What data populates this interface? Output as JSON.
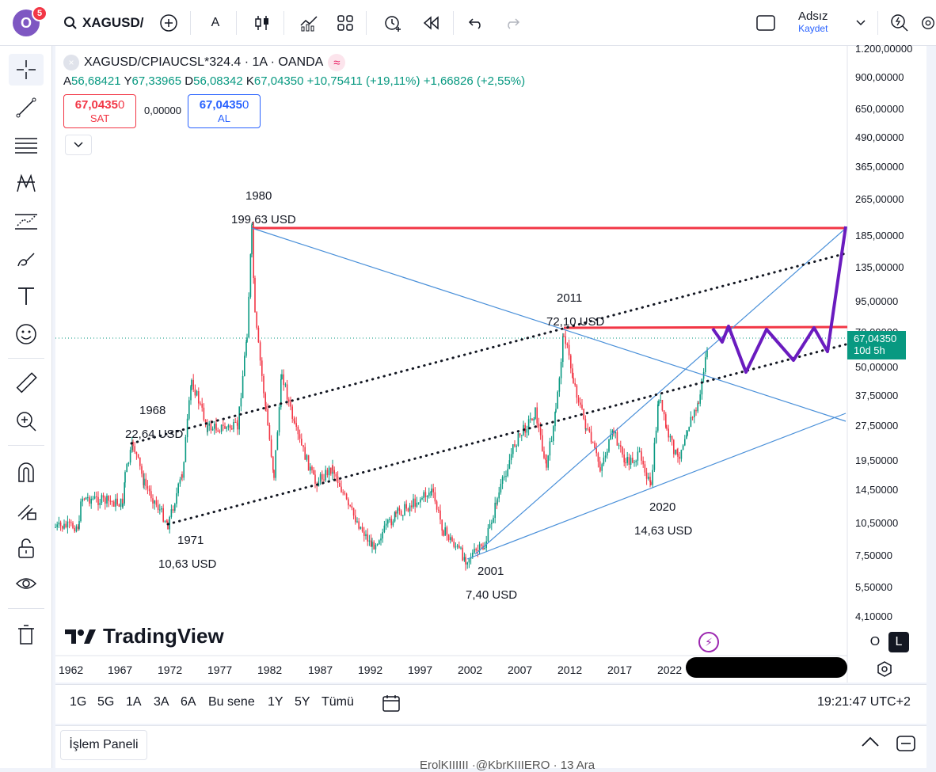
{
  "topbar": {
    "avatar_letter": "O",
    "notif_count": "5",
    "symbol": "XAGUSD/",
    "indicator_label": "A",
    "user_name": "Adsız",
    "save_label": "Kaydet"
  },
  "legend": {
    "title": "XAGUSD/CPIAUCSL*324.4 · 1A · OANDA",
    "ohlc_o_label": "A",
    "ohlc_o": "56,68421",
    "ohlc_h_label": "Y",
    "ohlc_h": "67,33965",
    "ohlc_l_label": "D",
    "ohlc_l": "56,08342",
    "ohlc_c_label": "K",
    "ohlc_c": "67,04350",
    "change": "+10,75411 (+19,11%)",
    "change2": "+1,66826 (+2,55%)"
  },
  "trade": {
    "sell_price": "67,0435",
    "sell_price_sup": "0",
    "sell_label": "SAT",
    "spread": "0,00000",
    "buy_price": "67,0435",
    "buy_price_sup": "0",
    "buy_label": "AL"
  },
  "price_axis": [
    "1.200,00000",
    "900,00000",
    "650,00000",
    "490,00000",
    "365,00000",
    "265,00000",
    "185,00000",
    "135,00000",
    "95,00000",
    "70,00000",
    "50,00000",
    "37,50000",
    "27,50000",
    "19,50000",
    "14,50000",
    "10,50000",
    "7,50000",
    "5,50000",
    "4,10000"
  ],
  "current_price": {
    "price": "67,04350",
    "countdown": "10d 5h"
  },
  "time_axis": [
    "1962",
    "1967",
    "1972",
    "1977",
    "1982",
    "1987",
    "1992",
    "1997",
    "2002",
    "2007",
    "2012",
    "2017",
    "2022"
  ],
  "annotations": [
    {
      "year": "1968",
      "price": "22,64 USD"
    },
    {
      "year": "1971",
      "price": "10,63 USD"
    },
    {
      "year": "1980",
      "price": "199,63 USD"
    },
    {
      "year": "2001",
      "price": "7,40 USD"
    },
    {
      "year": "2011",
      "price": "72,10 USD"
    },
    {
      "year": "2020",
      "price": "14,63 USD"
    }
  ],
  "branding": {
    "logo_text": "TradingView"
  },
  "scale_buttons": {
    "overlay": "O",
    "log": "L"
  },
  "ranges": [
    "1G",
    "5G",
    "1A",
    "3A",
    "6A",
    "Bu sene",
    "1Y",
    "5Y",
    "Tümü"
  ],
  "clock": "19:21:47 UTC+2",
  "bottom_panel": {
    "tab_label": "İşlem Paneli"
  },
  "footer_snippet": "ErolKIIIIII ·@KbrKIIIERO · 13 Ara",
  "colors": {
    "up": "#089981",
    "down": "#f23645",
    "resistance": "#f23645",
    "trendline": "#4a90d9",
    "projection": "#6a1bbf",
    "accent": "#2962ff"
  }
}
